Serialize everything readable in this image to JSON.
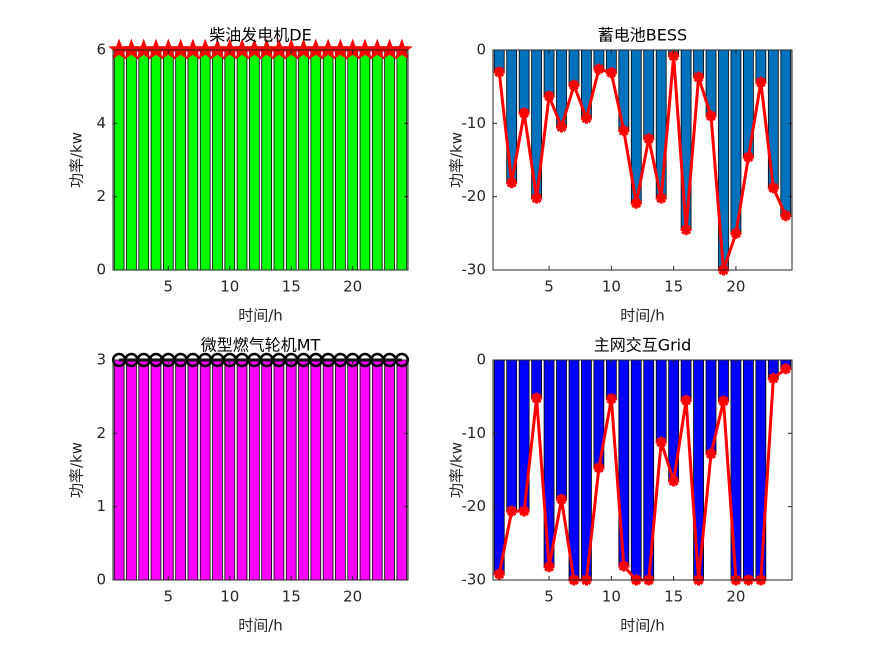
{
  "chart_data": [
    {
      "type": "bar",
      "title": "柴油发电机DE",
      "xlabel": "时间/h",
      "ylabel": "功率/kw",
      "x": [
        1,
        2,
        3,
        4,
        5,
        6,
        7,
        8,
        9,
        10,
        11,
        12,
        13,
        14,
        15,
        16,
        17,
        18,
        19,
        20,
        21,
        22,
        23,
        24
      ],
      "values": [
        6,
        6,
        6,
        6,
        6,
        6,
        6,
        6,
        6,
        6,
        6,
        6,
        6,
        6,
        6,
        6,
        6,
        6,
        6,
        6,
        6,
        6,
        6,
        6
      ],
      "color": "#00ff00",
      "line_color": "#ff0000",
      "marker": "star",
      "xlim": [
        0.5,
        24.5
      ],
      "xticks": [
        5,
        10,
        15,
        20
      ],
      "ylim": [
        0,
        6
      ],
      "yticks": [
        0,
        2,
        4,
        6
      ]
    },
    {
      "type": "bar",
      "title": "蓄电池BESS",
      "xlabel": "时间/h",
      "ylabel": "功率/kw",
      "x": [
        1,
        2,
        3,
        4,
        5,
        6,
        7,
        8,
        9,
        10,
        11,
        12,
        13,
        14,
        15,
        16,
        17,
        18,
        19,
        20,
        21,
        22,
        23,
        24
      ],
      "values": [
        -3,
        -18.1,
        -8.6,
        -20.2,
        -6.3,
        -10.5,
        -4.8,
        -9.3,
        -2.6,
        -3.1,
        -11,
        -20.9,
        -12.1,
        -20.2,
        -0.8,
        -24.5,
        -3.7,
        -9,
        -30,
        -25,
        -14.6,
        -4.4,
        -18.8,
        -22.6
      ],
      "color": "#0072bd",
      "line_color": "#ff0000",
      "marker": "asterisk",
      "xlim": [
        0.5,
        24.5
      ],
      "xticks": [
        5,
        10,
        15,
        20
      ],
      "ylim": [
        -30,
        0
      ],
      "yticks": [
        -30,
        -20,
        -10,
        0
      ]
    },
    {
      "type": "bar",
      "title": "微型燃气轮机MT",
      "xlabel": "时间/h",
      "ylabel": "功率/kw",
      "x": [
        1,
        2,
        3,
        4,
        5,
        6,
        7,
        8,
        9,
        10,
        11,
        12,
        13,
        14,
        15,
        16,
        17,
        18,
        19,
        20,
        21,
        22,
        23,
        24
      ],
      "values": [
        3,
        3,
        3,
        3,
        3,
        3,
        3,
        3,
        3,
        3,
        3,
        3,
        3,
        3,
        3,
        3,
        3,
        3,
        3,
        3,
        3,
        3,
        3,
        3
      ],
      "color": "#ff00ff",
      "line_color": "#000000",
      "marker": "circle",
      "xlim": [
        0.5,
        24.5
      ],
      "xticks": [
        5,
        10,
        15,
        20
      ],
      "ylim": [
        0,
        3
      ],
      "yticks": [
        0,
        1,
        2,
        3
      ]
    },
    {
      "type": "bar",
      "title": "主网交互Grid",
      "xlabel": "时间/h",
      "ylabel": "功率/kw",
      "x": [
        1,
        2,
        3,
        4,
        5,
        6,
        7,
        8,
        9,
        10,
        11,
        12,
        13,
        14,
        15,
        16,
        17,
        18,
        19,
        20,
        21,
        22,
        23,
        24
      ],
      "values": [
        -29.2,
        -20.6,
        -20.6,
        -5.2,
        -28.2,
        -19,
        -30,
        -30,
        -14.7,
        -5.3,
        -28.1,
        -30,
        -30,
        -11.2,
        -16.5,
        -5.5,
        -30,
        -12.8,
        -5.6,
        -30,
        -30,
        -30,
        -2.5,
        -1.2
      ],
      "color": "#0000ff",
      "line_color": "#ff0000",
      "marker": "asterisk",
      "xlim": [
        0.5,
        24.5
      ],
      "xticks": [
        5,
        10,
        15,
        20
      ],
      "ylim": [
        -30,
        0
      ],
      "yticks": [
        -30,
        -20,
        -10,
        0
      ]
    }
  ]
}
